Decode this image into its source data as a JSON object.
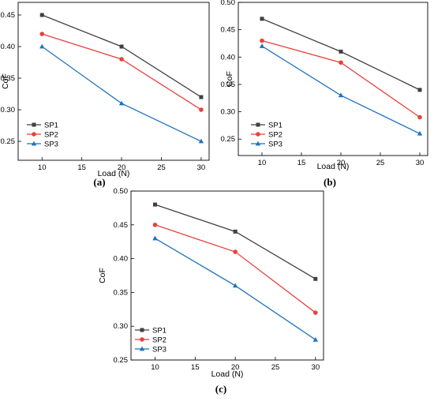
{
  "chart_data": [
    {
      "type": "line",
      "panel_label": "(a)",
      "xlabel": "Load (N)",
      "ylabel": "CoF",
      "x": [
        10,
        20,
        30
      ],
      "xlim": [
        7,
        31
      ],
      "ylim": [
        0.22,
        0.47
      ],
      "xticks": [
        "10",
        "15",
        "20",
        "25",
        "30"
      ],
      "yticks": [
        "0.25",
        "0.30",
        "0.35",
        "0.40",
        "0.45"
      ],
      "series": [
        {
          "name": "SP1",
          "values": [
            0.45,
            0.4,
            0.32
          ],
          "color": "#404040",
          "marker": "square"
        },
        {
          "name": "SP2",
          "values": [
            0.42,
            0.38,
            0.3
          ],
          "color": "#e8413c",
          "marker": "circle"
        },
        {
          "name": "SP3",
          "values": [
            0.4,
            0.31,
            0.25
          ],
          "color": "#1f72c0",
          "marker": "triangle"
        }
      ],
      "legend": "bottom-left",
      "grid": false
    },
    {
      "type": "line",
      "panel_label": "(b)",
      "xlabel": "Load (N)",
      "ylabel": "CoF",
      "x": [
        10,
        20,
        30
      ],
      "xlim": [
        7,
        31
      ],
      "ylim": [
        0.22,
        0.5
      ],
      "xticks": [
        "10",
        "15",
        "20",
        "25",
        "30"
      ],
      "yticks": [
        "0.25",
        "0.30",
        "0.35",
        "0.40",
        "0.45",
        "0.50"
      ],
      "series": [
        {
          "name": "SP1",
          "values": [
            0.47,
            0.41,
            0.34
          ],
          "color": "#404040",
          "marker": "square"
        },
        {
          "name": "SP2",
          "values": [
            0.43,
            0.39,
            0.29
          ],
          "color": "#e8413c",
          "marker": "circle"
        },
        {
          "name": "SP3",
          "values": [
            0.42,
            0.33,
            0.26
          ],
          "color": "#1f72c0",
          "marker": "triangle"
        }
      ],
      "legend": "bottom-left",
      "grid": false
    },
    {
      "type": "line",
      "panel_label": "(c)",
      "xlabel": "Load (N)",
      "ylabel": "CoF",
      "x": [
        10,
        20,
        30
      ],
      "xlim": [
        7,
        31
      ],
      "ylim": [
        0.25,
        0.5
      ],
      "xticks": [
        "10",
        "15",
        "20",
        "25",
        "30"
      ],
      "yticks": [
        "0.25",
        "0.30",
        "0.35",
        "0.40",
        "0.45",
        "0.50"
      ],
      "series": [
        {
          "name": "SP1",
          "values": [
            0.48,
            0.44,
            0.37
          ],
          "color": "#404040",
          "marker": "square"
        },
        {
          "name": "SP2",
          "values": [
            0.45,
            0.41,
            0.32
          ],
          "color": "#e8413c",
          "marker": "circle"
        },
        {
          "name": "SP3",
          "values": [
            0.43,
            0.36,
            0.28
          ],
          "color": "#1f72c0",
          "marker": "triangle"
        }
      ],
      "legend": "bottom-left",
      "grid": false
    }
  ]
}
